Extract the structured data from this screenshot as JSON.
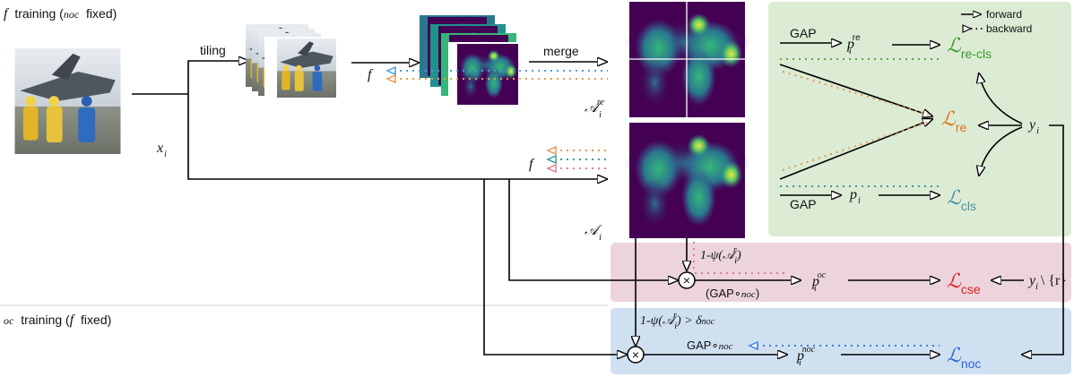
{
  "section_f_training": {
    "symbol": "f",
    "text_before": "training (",
    "noc": "noc",
    "text_after": "fixed)"
  },
  "section_oc_training": {
    "symbol": "oc",
    "text_before": "training (",
    "f": "f",
    "text_after": "fixed)"
  },
  "legend": {
    "forward": "forward",
    "backward": "backward"
  },
  "labels": {
    "tiling": "tiling",
    "merge": "merge",
    "x_i": "x",
    "x_i_sub": "i",
    "f_top": "f",
    "f_mid": "f",
    "A_re": "𝒜",
    "A_re_sub": "i",
    "A_re_sup": "re",
    "A": "𝒜",
    "A_sub": "i",
    "gap_top": "GAP",
    "gap_bottom": "GAP",
    "p_re": "p",
    "p_re_sup": "re",
    "p_re_sub": "i",
    "p_cls": "p",
    "p_cls_sub": "i",
    "L_re_cls": "ℒ",
    "L_re_cls_sub": "re-cls",
    "L_re": "ℒ",
    "L_re_sub": "re",
    "L_cls": "ℒ",
    "L_cls_sub": "cls",
    "y_i": "y",
    "y_i_sub": "i",
    "psi_cse": "1-ψ(𝒜",
    "psi_cse_sub": "i",
    "psi_cse_sup": "r",
    "psi_cse_close": ")",
    "gap_noc_cse": "(GAP∘",
    "gap_noc_cse_noc": "noc",
    "gap_noc_cse_close": ")",
    "p_oc": "p",
    "p_oc_sub": "i",
    "p_oc_sup": "oc",
    "L_cse": "ℒ",
    "L_cse_sub": "cse",
    "y_minus_r": "y",
    "y_minus_r_sub": "i",
    "y_minus_r_rest": "\\ {r}",
    "psi_noc": "1-ψ(𝒜",
    "psi_noc_sub": "i",
    "psi_noc_sup": "r",
    "psi_noc_rest": ") > δ",
    "psi_noc_delta_sub": "noc",
    "gap_noc": "GAP∘",
    "gap_noc_sub": "noc",
    "p_noc": "p",
    "p_noc_sub": "i",
    "p_noc_sup": "noc",
    "L_noc": "ℒ",
    "L_noc_sub": "noc",
    "times": "×"
  },
  "colors": {
    "green_panel": "#dcebd4",
    "pink_panel": "#ecd3dc",
    "blue_panel": "#cfe0f1",
    "green_text": "#3a9a2a",
    "orange_text": "#d9741a",
    "teal_text": "#4a8fa6",
    "red_text": "#e02020",
    "blue_text": "#2b62d9",
    "green_dot": "#58a844",
    "orange_dot": "#e39a55",
    "blue_dot": "#4a9bd6",
    "teal_dot": "#3c9a9c",
    "pink_dot": "#e07f8f",
    "blue_back": "#3f7fe0"
  }
}
